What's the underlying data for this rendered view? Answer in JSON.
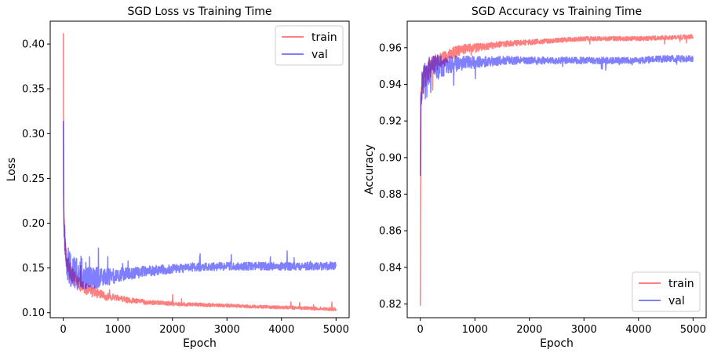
{
  "chart_data": [
    {
      "type": "line",
      "title": "SGD Loss vs Training Time",
      "xlabel": "Epoch",
      "ylabel": "Loss",
      "xlim": [
        -240,
        5240
      ],
      "ylim": [
        0.0945,
        0.4255
      ],
      "xticks": [
        0,
        1000,
        2000,
        3000,
        4000,
        5000
      ],
      "yticks": [
        0.1,
        0.15,
        0.2,
        0.25,
        0.3,
        0.35,
        0.4
      ],
      "tick_decimals": 2,
      "legend": {
        "position": "upper right",
        "entries": [
          "train",
          "val"
        ]
      },
      "grid": false,
      "series": [
        {
          "name": "train",
          "color": "#ff0000",
          "alpha": 0.5,
          "x": [
            0,
            5,
            10,
            20,
            30,
            50,
            80,
            120,
            160,
            200,
            250,
            300,
            400,
            500,
            600,
            700,
            800,
            1000,
            1200,
            1500,
            1800,
            2000,
            2500,
            3000,
            3500,
            4000,
            4500,
            5000
          ],
          "y": [
            0.412,
            0.27,
            0.21,
            0.185,
            0.175,
            0.165,
            0.155,
            0.148,
            0.142,
            0.138,
            0.134,
            0.131,
            0.127,
            0.124,
            0.122,
            0.12,
            0.118,
            0.116,
            0.114,
            0.112,
            0.111,
            0.11,
            0.109,
            0.108,
            0.107,
            0.106,
            0.105,
            0.104
          ]
        },
        {
          "name": "val",
          "color": "#0000ff",
          "alpha": 0.5,
          "x": [
            0,
            5,
            10,
            20,
            40,
            80,
            120,
            200,
            300,
            400,
            500,
            600,
            800,
            1000,
            1200,
            1500,
            2000,
            2500,
            3000,
            3500,
            4000,
            4500,
            5000
          ],
          "y": [
            0.314,
            0.24,
            0.2,
            0.18,
            0.165,
            0.155,
            0.15,
            0.145,
            0.142,
            0.14,
            0.139,
            0.139,
            0.14,
            0.142,
            0.144,
            0.146,
            0.149,
            0.151,
            0.152,
            0.152,
            0.152,
            0.152,
            0.152
          ]
        }
      ]
    },
    {
      "type": "line",
      "title": "SGD Accuracy vs Training Time",
      "xlabel": "Epoch",
      "ylabel": "Accuracy",
      "xlim": [
        -240,
        5240
      ],
      "ylim": [
        0.8125,
        0.9745
      ],
      "xticks": [
        0,
        1000,
        2000,
        3000,
        4000,
        5000
      ],
      "yticks": [
        0.82,
        0.84,
        0.86,
        0.88,
        0.9,
        0.92,
        0.94,
        0.96
      ],
      "tick_decimals": 2,
      "legend": {
        "position": "lower right",
        "entries": [
          "train",
          "val"
        ]
      },
      "grid": false,
      "series": [
        {
          "name": "train",
          "color": "#ff0000",
          "alpha": 0.5,
          "x": [
            0,
            5,
            10,
            20,
            40,
            80,
            150,
            250,
            400,
            600,
            800,
            1000,
            1500,
            2000,
            2500,
            3000,
            3500,
            4000,
            4500,
            5000
          ],
          "y": [
            0.819,
            0.89,
            0.925,
            0.935,
            0.94,
            0.944,
            0.948,
            0.951,
            0.954,
            0.957,
            0.959,
            0.96,
            0.962,
            0.963,
            0.964,
            0.965,
            0.965,
            0.965,
            0.9655,
            0.966
          ]
        },
        {
          "name": "val",
          "color": "#0000ff",
          "alpha": 0.5,
          "x": [
            0,
            5,
            10,
            20,
            40,
            80,
            150,
            250,
            400,
            600,
            800,
            1000,
            1500,
            2000,
            2500,
            3000,
            3500,
            4000,
            4500,
            5000
          ],
          "y": [
            0.89,
            0.915,
            0.928,
            0.935,
            0.94,
            0.944,
            0.947,
            0.949,
            0.95,
            0.951,
            0.952,
            0.952,
            0.953,
            0.953,
            0.953,
            0.953,
            0.953,
            0.953,
            0.954,
            0.954
          ]
        }
      ]
    }
  ]
}
